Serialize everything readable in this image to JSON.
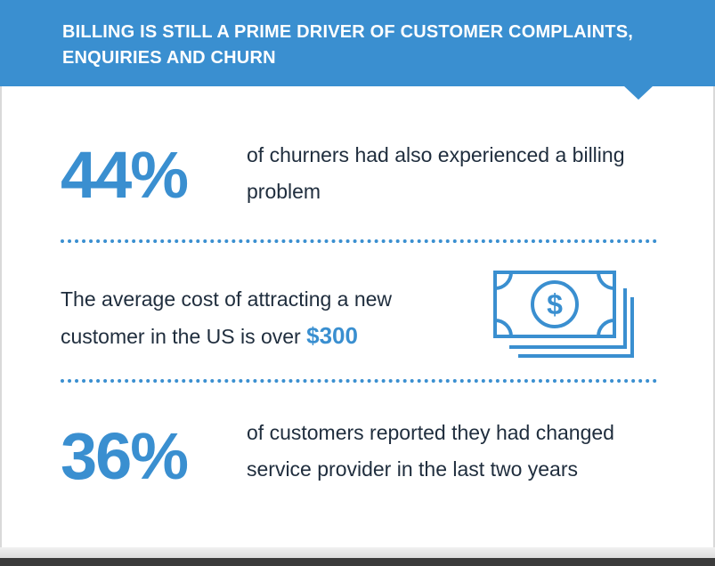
{
  "header": {
    "title": "BILLING IS STILL A PRIME DRIVER OF CUSTOMER COMPLAINTS, ENQUIRIES AND CHURN"
  },
  "stat1": {
    "value": "44%",
    "text": "of churners had also experienced a billing problem"
  },
  "stat2": {
    "text_before": "The average cost of attracting a new customer in the US is over ",
    "highlight": "$300",
    "icon": "dollar-bills-icon"
  },
  "stat3": {
    "value": "36%",
    "text": "of customers reported they had changed service provider in the last two years"
  },
  "colors": {
    "accent": "#3a8fd0",
    "text": "#1f2d3d"
  }
}
